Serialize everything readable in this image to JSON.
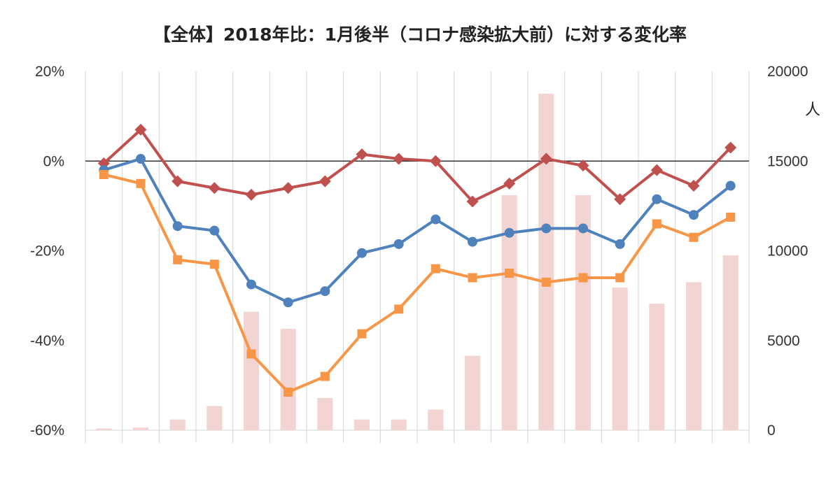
{
  "chart_data": {
    "type": "line",
    "title": "【全体】2018年比：1月後半（コロナ感染拡大前）に対する変化率",
    "y_left": {
      "ticks": [
        "20%",
        "0%",
        "-20%",
        "-40%",
        "-60%"
      ],
      "ylim": [
        -60,
        20
      ],
      "unit": "%"
    },
    "y_right": {
      "ticks": [
        "20000",
        "15000",
        "10000",
        "5000",
        "0"
      ],
      "ylim": [
        0,
        20000
      ],
      "label": "人"
    },
    "x_count": 18,
    "grid": true,
    "series": [
      {
        "type": "line",
        "color": "#C0504D",
        "marker": "diamond",
        "values": [
          -0.5,
          7,
          -4.5,
          -6,
          -7.5,
          -6,
          -4.5,
          1.5,
          0.5,
          0,
          -9,
          -5,
          0.5,
          -1,
          -8.5,
          -2,
          -5.5,
          3
        ]
      },
      {
        "type": "line",
        "color": "#4F81BD",
        "marker": "circle",
        "values": [
          -2,
          0.5,
          -14.5,
          -15.5,
          -27.5,
          -31.5,
          -29,
          -20.5,
          -18.5,
          -13,
          -18,
          -16,
          -15,
          -15,
          -18.5,
          -8.5,
          -12,
          -5.5
        ]
      },
      {
        "type": "line",
        "color": "#F79646",
        "marker": "square",
        "values": [
          -3,
          -5,
          -22,
          -23,
          -43,
          -51.5,
          -48,
          -38.5,
          -33,
          -24,
          -26,
          -25,
          -27,
          -26,
          -26,
          -14,
          -17,
          -12.5
        ]
      },
      {
        "type": "bar",
        "color": "#F2D4D2",
        "axis": "right",
        "values": [
          100,
          150,
          600,
          1350,
          6600,
          5650,
          1800,
          600,
          600,
          1150,
          4150,
          13100,
          18750,
          13100,
          7950,
          7050,
          8250,
          9750
        ]
      }
    ]
  }
}
